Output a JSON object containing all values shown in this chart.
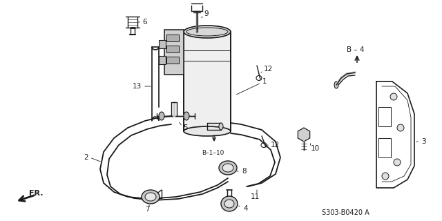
{
  "bg_color": "#ffffff",
  "line_color": "#1a1a1a",
  "part_number_text": "S303-B0420 A",
  "figsize": [
    6.4,
    3.2
  ],
  "dpi": 100
}
